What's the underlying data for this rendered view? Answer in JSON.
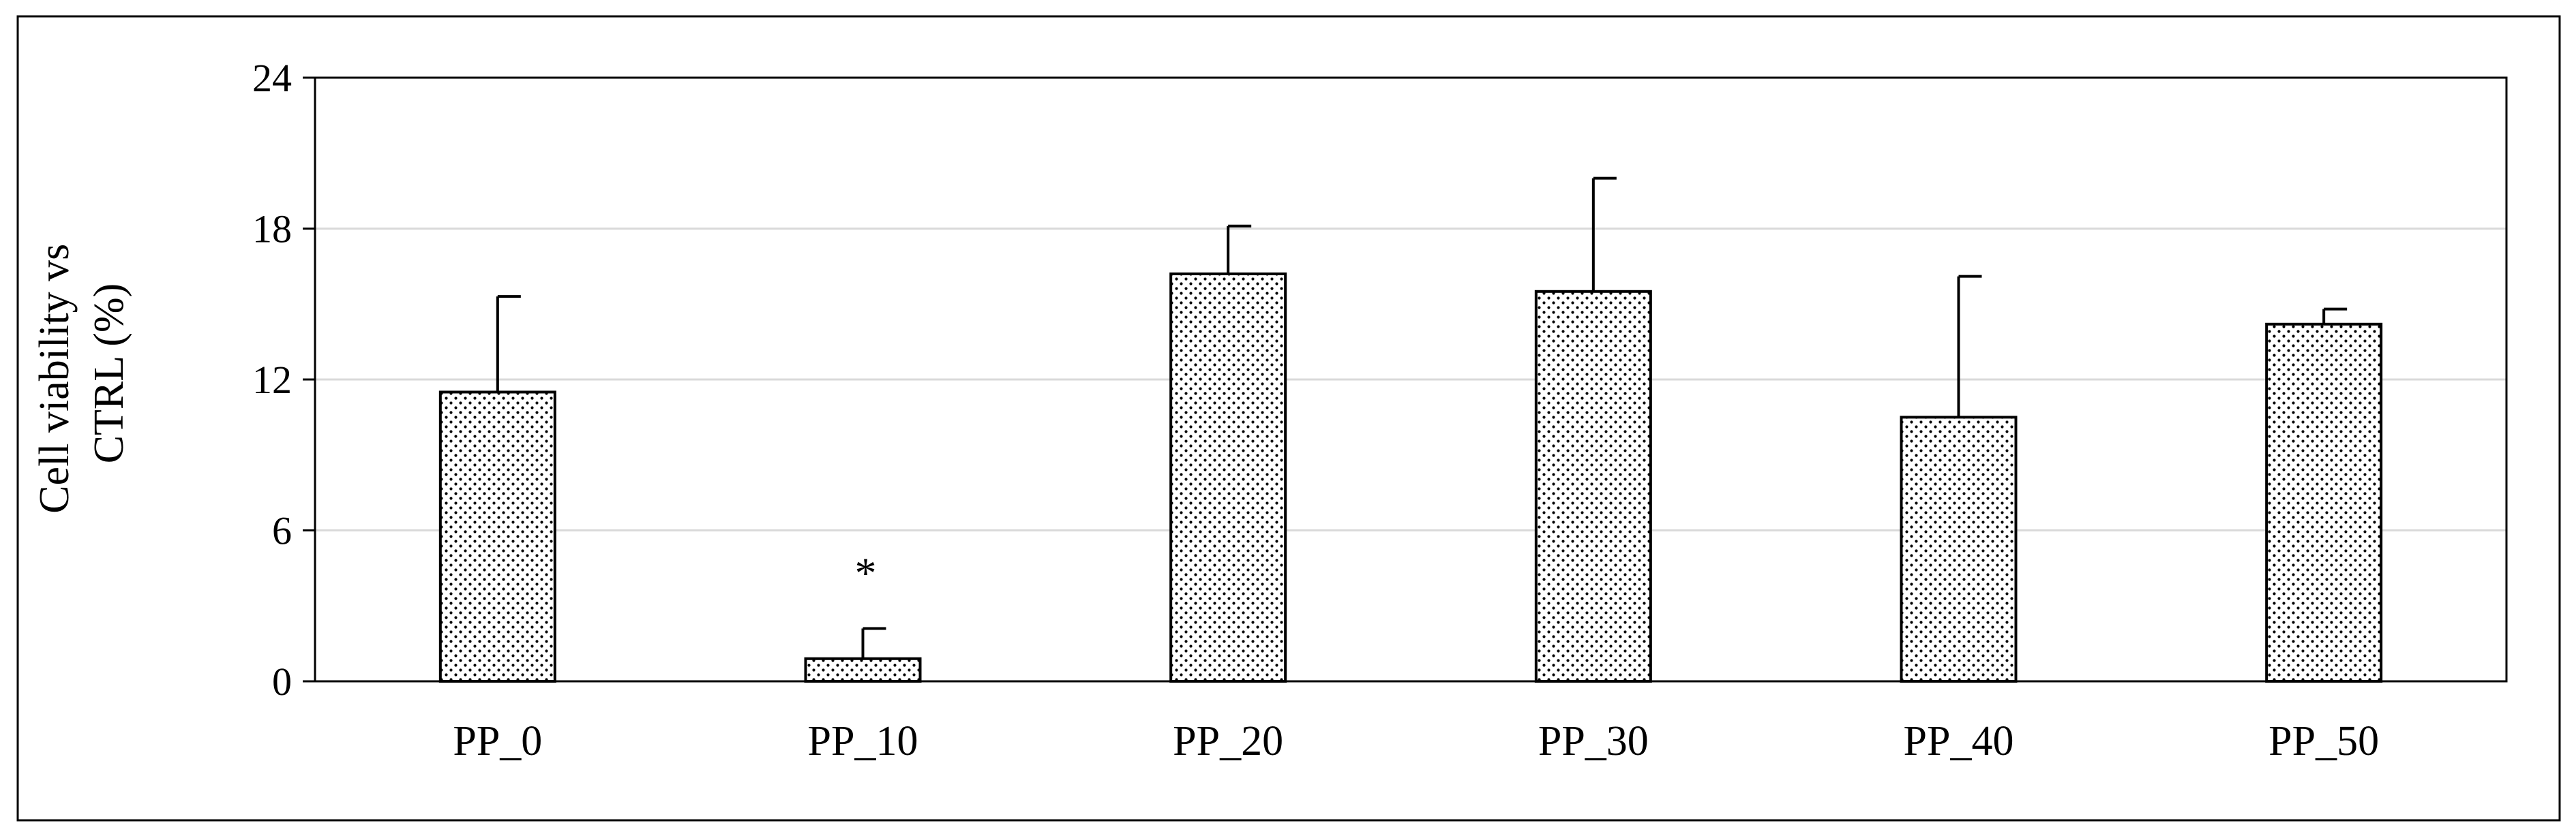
{
  "chart_data": {
    "type": "bar",
    "title": "",
    "xlabel": "",
    "ylabel_lines": [
      "Cell viability vs",
      "CTRL (%)"
    ],
    "categories": [
      "PP_0",
      "PP_10",
      "PP_20",
      "PP_30",
      "PP_40",
      "PP_50"
    ],
    "values": [
      11.5,
      0.9,
      16.2,
      15.5,
      10.5,
      14.2
    ],
    "error_plus": [
      3.8,
      1.2,
      1.9,
      4.5,
      5.6,
      0.6
    ],
    "annotations": [
      {
        "category": "PP_10",
        "text": "*"
      }
    ],
    "ylim": [
      0,
      24
    ],
    "yticks": [
      0,
      6,
      12,
      18,
      24
    ],
    "grid": true,
    "bar_fill": "dotted",
    "colors": {
      "gridline": "#d9d9d9",
      "bar_outline": "#000000",
      "dots": "#000000"
    }
  }
}
